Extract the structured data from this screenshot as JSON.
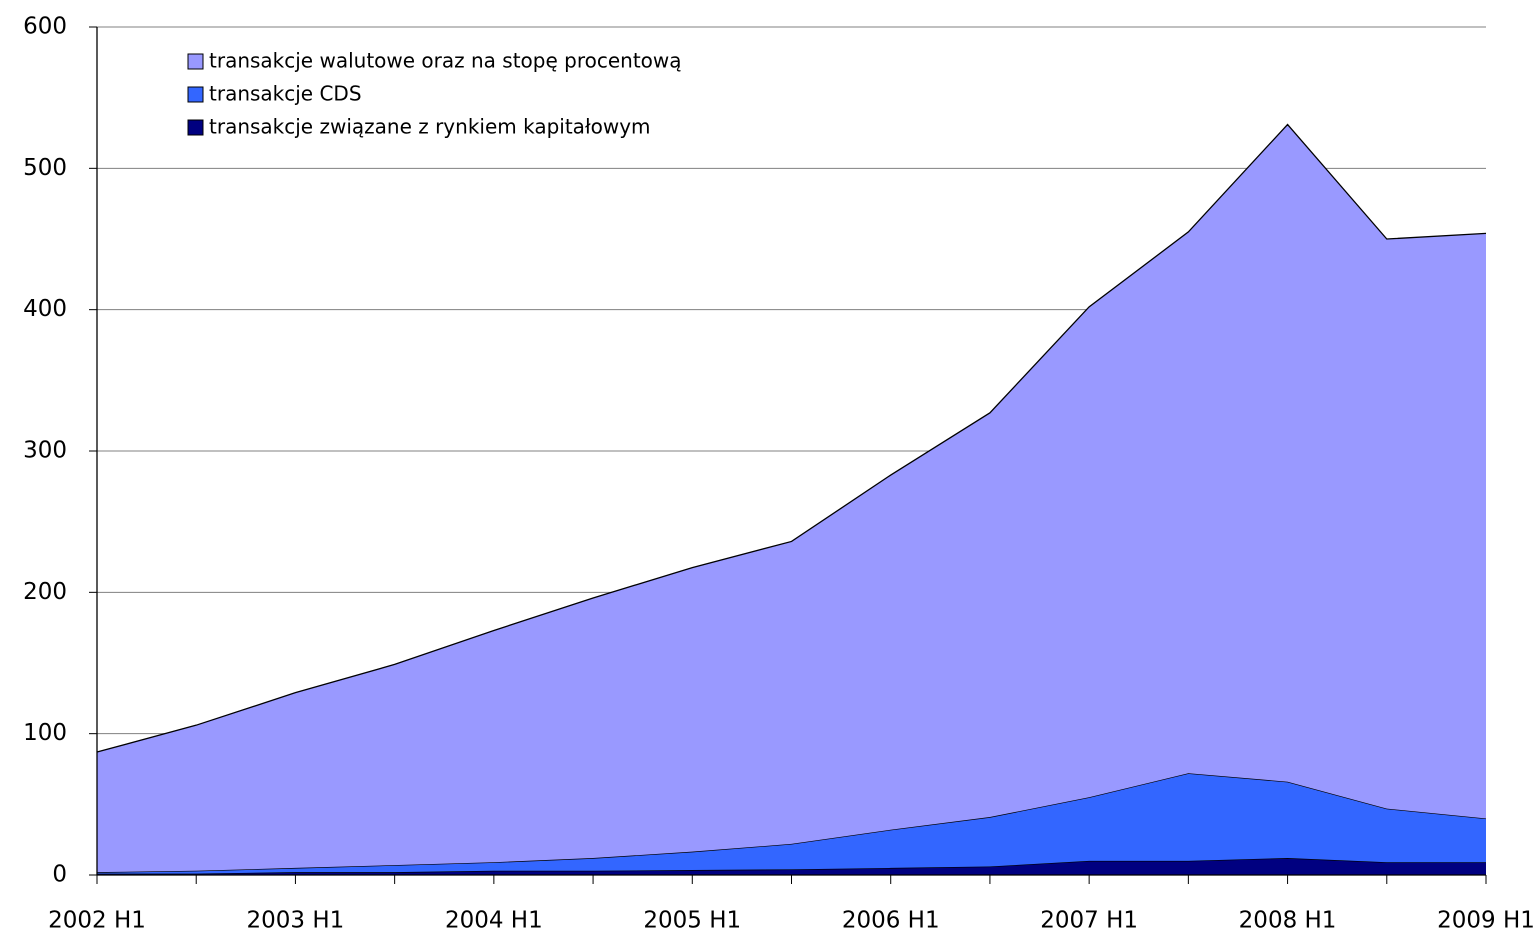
{
  "chart_data": {
    "type": "stacked-area",
    "categories": [
      "2002 H1",
      null,
      "2003 H1",
      null,
      "2004 H1",
      null,
      "2005 H1",
      null,
      "2006 H1",
      null,
      "2007 H1",
      null,
      "2008 H1",
      null,
      "2009 H1"
    ],
    "series": [
      {
        "name": "transakcje walutowe oraz na stopę procentową",
        "color": "#9999ff",
        "values": [
          85,
          103,
          124,
          142,
          164,
          184,
          201,
          214,
          251,
          286,
          347,
          383,
          465,
          403,
          414
        ]
      },
      {
        "name": "transakcje CDS",
        "color": "#3366ff",
        "values": [
          1,
          2,
          3,
          5,
          6,
          9,
          13,
          18,
          27,
          35,
          45,
          62,
          54,
          38,
          31
        ]
      },
      {
        "name": "transakcje związane z rynkiem kapitałowym",
        "color": "#000080",
        "values": [
          1,
          1,
          2,
          2,
          3,
          3,
          3.5,
          4,
          5,
          6,
          10,
          10,
          12,
          9,
          9
        ]
      }
    ],
    "ylim": [
      0,
      600
    ],
    "yticks": [
      0,
      100,
      200,
      300,
      400,
      500,
      600
    ],
    "grid": true,
    "legend": "top-left"
  }
}
